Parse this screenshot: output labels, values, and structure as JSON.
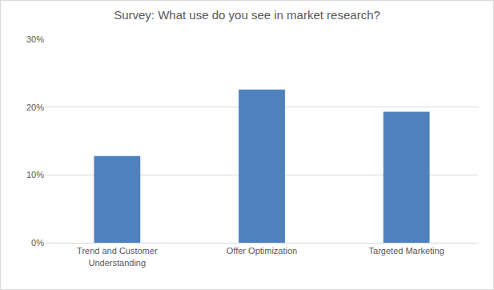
{
  "chart_data": {
    "type": "bar",
    "title": "Survey: What use do you see in market research?",
    "categories": [
      "Trend and Customer Understanding",
      "Offer Optimization",
      "Targeted Marketing"
    ],
    "values": [
      12.8,
      22.6,
      19.3
    ],
    "color": "#4f81bd",
    "ylim": [
      0,
      30
    ],
    "yticks": [
      {
        "value": 0,
        "label": "0%"
      },
      {
        "value": 10,
        "label": "10%"
      },
      {
        "value": 20,
        "label": "20%"
      },
      {
        "value": 30,
        "label": "30%"
      }
    ],
    "grid": true
  }
}
